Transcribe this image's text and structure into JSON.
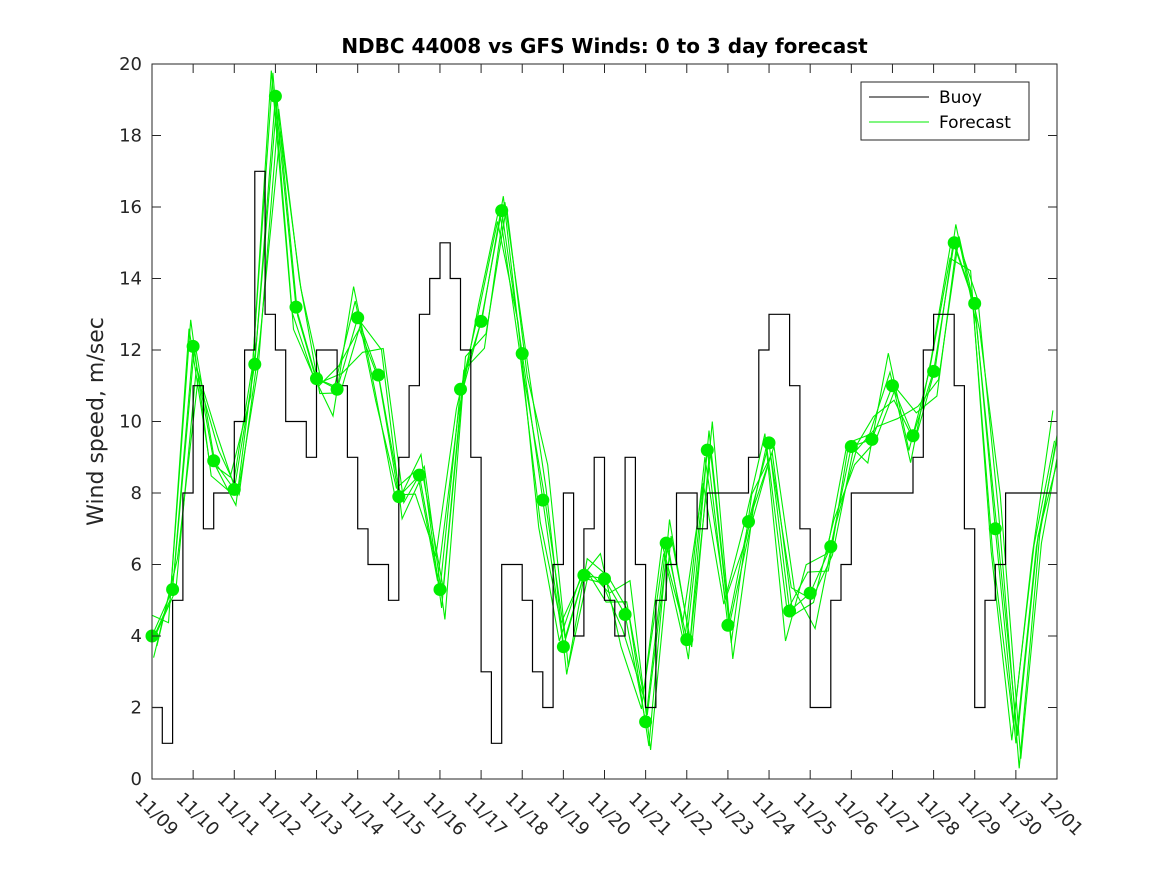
{
  "chart_data": {
    "type": "line",
    "title": "NDBC 44008 vs GFS Winds: 0 to 3 day forecast",
    "xlabel": "",
    "ylabel": "Wind speed, m/sec",
    "x_range_days": [
      0,
      22
    ],
    "ylim": [
      0,
      20
    ],
    "y_ticks": [
      0,
      2,
      4,
      6,
      8,
      10,
      12,
      14,
      16,
      18,
      20
    ],
    "x_ticks": [
      "11/09",
      "11/10",
      "11/11",
      "11/12",
      "11/13",
      "11/14",
      "11/15",
      "11/16",
      "11/17",
      "11/18",
      "11/19",
      "11/20",
      "11/21",
      "11/22",
      "11/23",
      "11/24",
      "11/25",
      "11/26",
      "11/27",
      "11/28",
      "11/29",
      "11/30",
      "12/01"
    ],
    "grid": false,
    "legend": {
      "position": "top-right",
      "entries": [
        "Buoy",
        "Forecast"
      ]
    },
    "colors": {
      "buoy": "#000000",
      "forecast": "#00ee00",
      "axes": "#262626"
    },
    "series": [
      {
        "name": "Buoy",
        "style": "step",
        "x": [
          0,
          0.25,
          0.5,
          0.75,
          1.0,
          1.25,
          1.5,
          1.75,
          2.0,
          2.25,
          2.5,
          2.75,
          3.0,
          3.25,
          3.5,
          3.75,
          4.0,
          4.25,
          4.5,
          4.75,
          5.0,
          5.25,
          5.5,
          5.75,
          6.0,
          6.25,
          6.5,
          6.75,
          7.0,
          7.25,
          7.5,
          7.75,
          8.0,
          8.25,
          8.5,
          8.75,
          9.0,
          9.25,
          9.5,
          9.75,
          10.0,
          10.25,
          10.5,
          10.75,
          11.0,
          11.25,
          11.5,
          11.75,
          12.0,
          12.25,
          12.5,
          12.75,
          13.0,
          13.25,
          13.5,
          13.75,
          14.0,
          14.25,
          14.5,
          14.75,
          15.0,
          15.25,
          15.5,
          15.75,
          16.0,
          16.25,
          16.5,
          16.75,
          17.0,
          17.25,
          17.5,
          17.75,
          18.0,
          18.25,
          18.5,
          18.75,
          19.0,
          19.25,
          19.5,
          19.75,
          20.0,
          20.25,
          20.5,
          20.75,
          21.0,
          21.25,
          21.5,
          21.75,
          22.0
        ],
        "y": [
          2,
          1,
          5,
          8,
          11,
          7,
          8,
          8,
          10,
          12,
          17,
          13,
          12,
          10,
          10,
          9,
          12,
          12,
          11,
          9,
          7,
          6,
          6,
          5,
          9,
          11,
          13,
          14,
          15,
          14,
          12,
          9,
          3,
          1,
          6,
          6,
          5,
          3,
          2,
          6,
          8,
          4,
          7,
          9,
          5,
          4,
          9,
          6,
          2,
          5,
          6,
          8,
          8,
          7,
          8,
          8,
          8,
          8,
          9,
          12,
          13,
          13,
          11,
          7,
          2,
          2,
          5,
          6,
          8,
          8,
          8,
          8,
          8,
          8,
          9,
          12,
          13,
          13,
          11,
          7,
          2,
          5,
          6,
          8,
          8,
          8,
          8,
          8,
          8
        ]
      },
      {
        "name": "Forecast",
        "style": "line",
        "x": [
          0,
          0.5,
          1.0,
          1.5,
          2.0,
          2.5,
          3.0,
          3.5,
          4.0,
          4.5,
          5.0,
          5.5,
          6.0,
          6.5,
          7.0,
          7.5,
          8.0,
          8.5,
          9.0,
          9.5,
          10.0,
          10.5,
          11.0,
          11.5,
          12.0,
          12.5,
          13.0,
          13.5,
          14.0,
          14.5,
          15.0,
          15.5,
          16.0,
          16.5,
          17.0,
          17.5,
          18.0,
          18.5,
          19.0,
          19.5,
          20.0,
          20.5,
          21.0,
          21.5,
          22.0
        ],
        "y": [
          4.0,
          5.3,
          12.1,
          8.9,
          8.1,
          11.6,
          19.1,
          13.2,
          11.2,
          10.9,
          12.9,
          11.3,
          7.9,
          8.5,
          5.3,
          10.9,
          12.8,
          15.9,
          11.9,
          7.8,
          3.7,
          5.7,
          5.6,
          4.6,
          1.6,
          6.6,
          3.9,
          9.2,
          4.3,
          7.2,
          9.4,
          4.7,
          5.2,
          6.5,
          9.3,
          9.5,
          11.0,
          9.6,
          11.4,
          15.0,
          13.3,
          7.0,
          1.0,
          6.5,
          9.5
        ]
      },
      {
        "name": "",
        "markers": true,
        "x": [
          0,
          0.5,
          1.0,
          1.5,
          2.0,
          2.5,
          3.0,
          3.5,
          4.0,
          4.5,
          5.0,
          5.5,
          6.0,
          6.5,
          7.0,
          7.5,
          8.0,
          8.5,
          9.0,
          9.5,
          10.0,
          10.5,
          11.0,
          11.5,
          12.0,
          12.5,
          13.0,
          13.5,
          14.0,
          14.5,
          15.0,
          15.5,
          16.0,
          16.5,
          17.0,
          17.5,
          18.0,
          18.5,
          19.0,
          19.5,
          20.0,
          20.5,
          21.0
        ],
        "y": [
          4.0,
          5.3,
          12.1,
          8.9,
          8.1,
          11.6,
          19.1,
          13.2,
          11.2,
          10.9,
          12.9,
          11.3,
          7.9,
          8.5,
          5.3,
          10.9,
          12.8,
          15.9,
          11.9,
          7.8,
          3.7,
          5.7,
          5.6,
          4.6,
          1.6,
          6.6,
          3.9,
          9.2,
          4.3,
          7.2,
          9.4,
          4.7,
          5.2,
          6.5,
          9.3,
          9.5,
          11.0,
          9.6,
          11.4,
          15.0,
          13.3,
          7.0,
          null
        ]
      }
    ]
  }
}
